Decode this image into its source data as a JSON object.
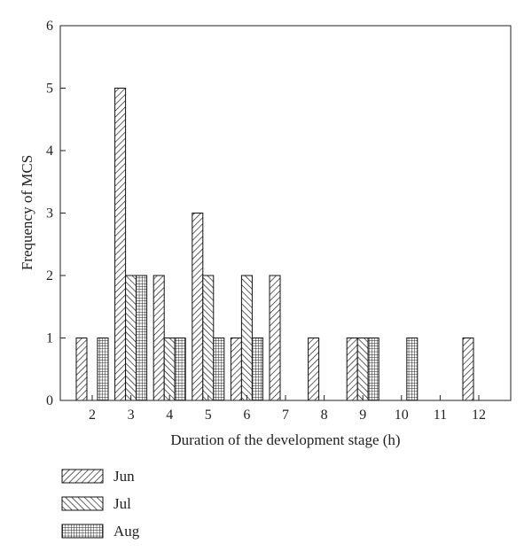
{
  "chart_data": {
    "type": "bar",
    "title": "",
    "xlabel": "Duration of the development stage (h)",
    "ylabel": "Frequency of MCS",
    "categories": [
      "2",
      "3",
      "4",
      "5",
      "6",
      "7",
      "8",
      "9",
      "10",
      "11",
      "12"
    ],
    "ylim": [
      0,
      6
    ],
    "yticks": [
      "0",
      "1",
      "2",
      "3",
      "4",
      "5",
      "6"
    ],
    "grid": false,
    "legend_position": "bottom-left",
    "series": [
      {
        "name": "Jun",
        "pattern": "diagonal-forward",
        "values": [
          1,
          5,
          2,
          3,
          1,
          2,
          1,
          1,
          0,
          0,
          1
        ]
      },
      {
        "name": "Jul",
        "pattern": "diagonal-backward",
        "values": [
          0,
          2,
          1,
          2,
          2,
          0,
          0,
          1,
          0,
          0,
          0
        ]
      },
      {
        "name": "Aug",
        "pattern": "grid",
        "values": [
          1,
          2,
          1,
          1,
          1,
          0,
          0,
          1,
          1,
          0,
          0
        ]
      }
    ]
  }
}
